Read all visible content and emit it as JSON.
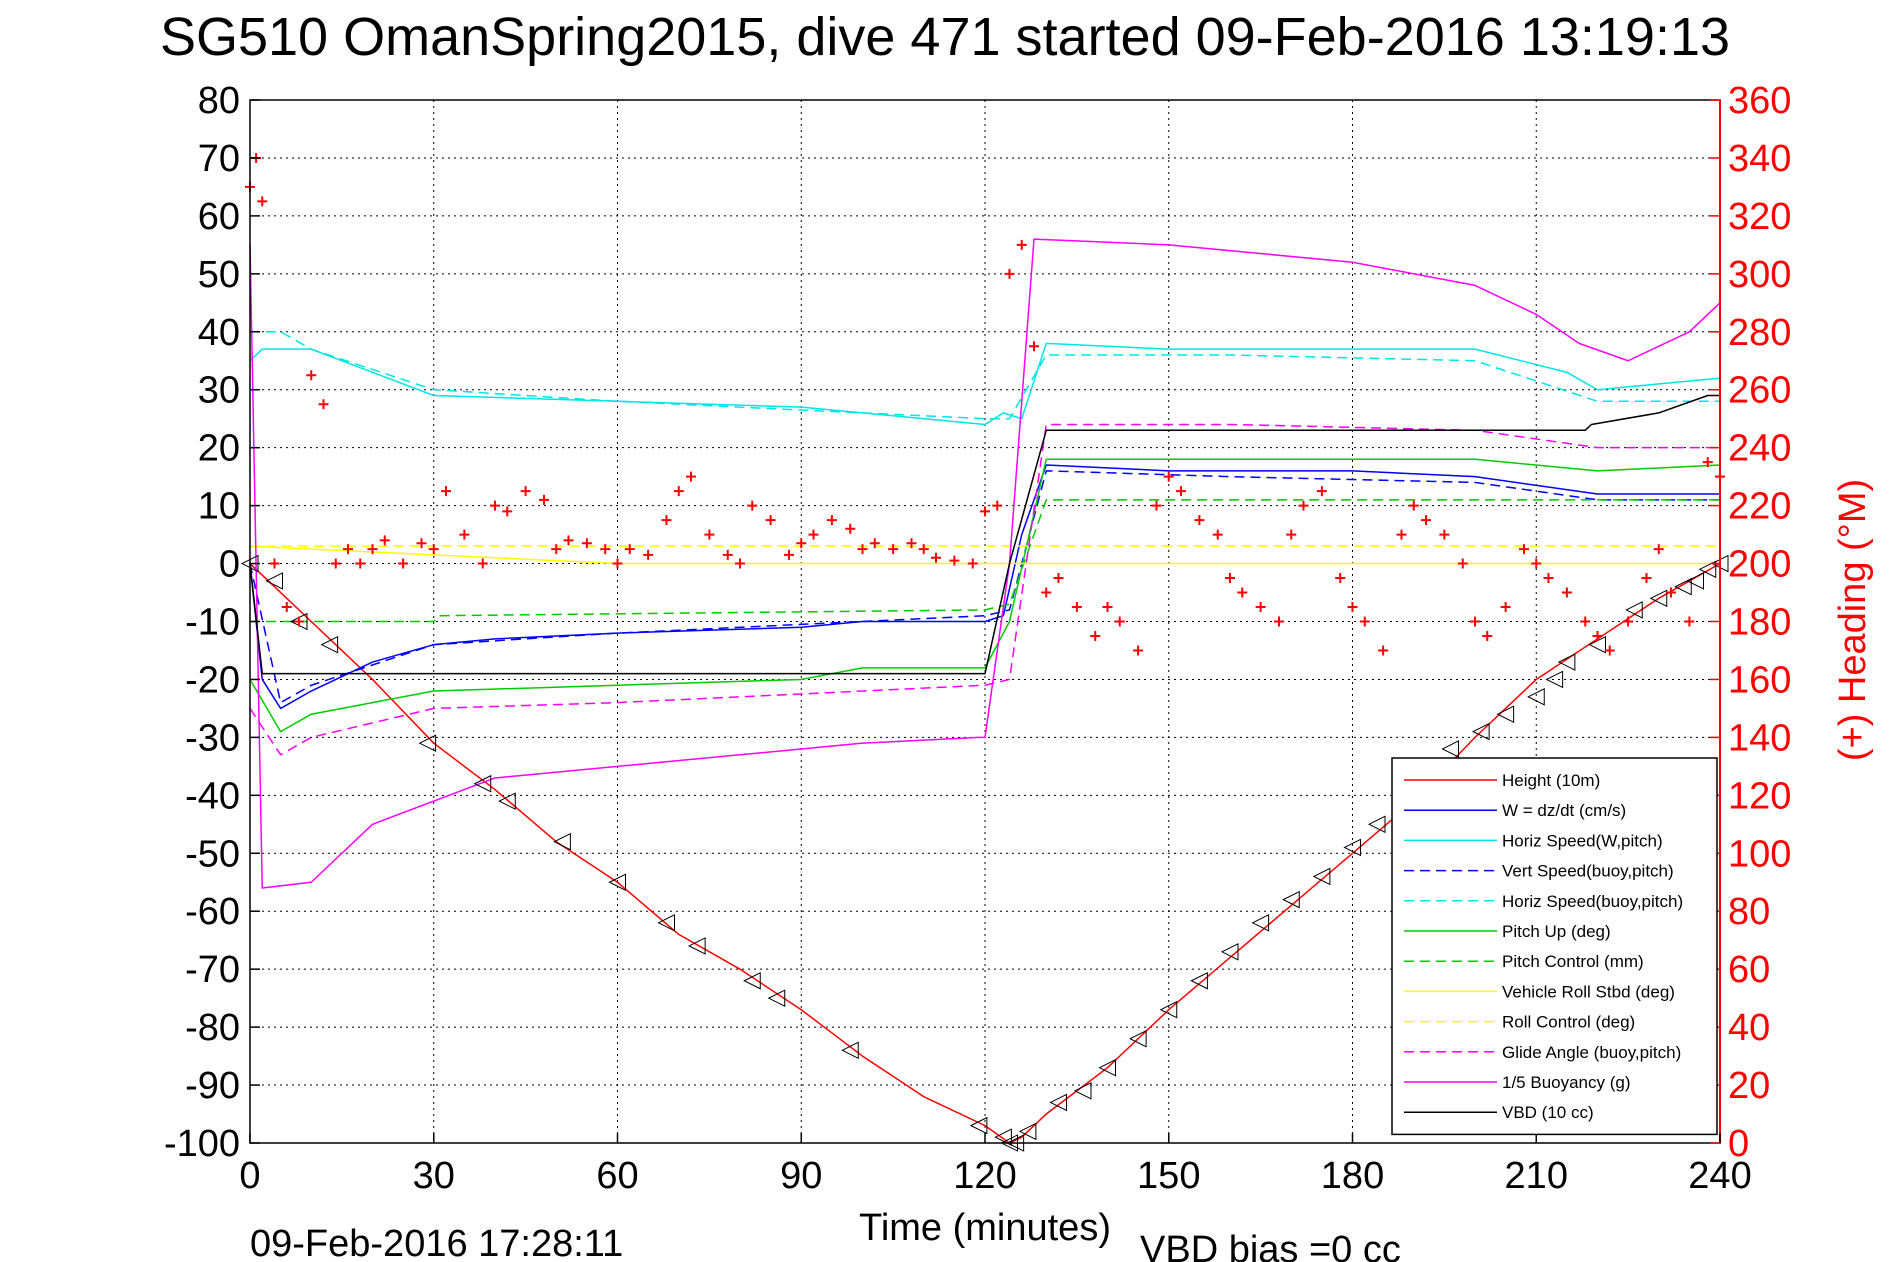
{
  "chart_data": {
    "type": "line",
    "title": "SG510 OmanSpring2015, dive 471 started 09-Feb-2016 13:19:13",
    "xlabel": "Time (minutes)",
    "ylabel": "",
    "y2label": "(+) Heading (°M)",
    "xlim": [
      0,
      240
    ],
    "ylim": [
      -100,
      80
    ],
    "y2lim": [
      0,
      360
    ],
    "xticks": [
      "0",
      "30",
      "60",
      "90",
      "120",
      "150",
      "180",
      "210",
      "240"
    ],
    "yticks": [
      "80",
      "70",
      "60",
      "50",
      "40",
      "30",
      "20",
      "10",
      "0",
      "-10",
      "-20",
      "-30",
      "-40",
      "-50",
      "-60",
      "-70",
      "-80",
      "-90",
      "-100"
    ],
    "y2ticks": [
      "360",
      "340",
      "320",
      "300",
      "280",
      "260",
      "240",
      "220",
      "200",
      "180",
      "160",
      "140",
      "120",
      "100",
      "80",
      "60",
      "40",
      "20",
      "0"
    ],
    "grid": true,
    "legend_position": "bottom-right",
    "footer_date": "09-Feb-2016 17:28:11",
    "footer_vbd": "VBD bias =0 cc",
    "series": [
      {
        "name": "Height (10m)",
        "color": "#ff0000",
        "style": "solid",
        "x": [
          0,
          5,
          10,
          20,
          30,
          40,
          50,
          60,
          70,
          80,
          90,
          100,
          110,
          120,
          124,
          126,
          130,
          140,
          150,
          160,
          170,
          180,
          190,
          200,
          210,
          220,
          230,
          240
        ],
        "y": [
          0,
          -5,
          -10,
          -20,
          -31,
          -39,
          -48,
          -55,
          -64,
          -70,
          -77,
          -85,
          -92,
          -97,
          -100,
          -99,
          -95,
          -87,
          -77,
          -68,
          -59,
          -50,
          -41,
          -30,
          -20,
          -13,
          -6,
          0
        ]
      },
      {
        "name": "W = dz/dt (cm/s)",
        "color": "#0000ff",
        "style": "solid",
        "x": [
          0,
          2,
          5,
          10,
          20,
          30,
          40,
          60,
          90,
          100,
          120,
          123,
          126,
          130,
          150,
          180,
          200,
          220,
          240
        ],
        "y": [
          0,
          -20,
          -25,
          -22,
          -17,
          -14,
          -13,
          -12,
          -11,
          -10,
          -10,
          -9,
          5,
          17,
          16,
          16,
          15,
          12,
          12
        ]
      },
      {
        "name": "Horiz Speed(W,pitch)",
        "color": "#00e5e5",
        "style": "solid",
        "x": [
          0,
          2,
          5,
          10,
          20,
          30,
          60,
          90,
          100,
          120,
          123,
          126,
          130,
          150,
          180,
          200,
          215,
          220,
          240
        ],
        "y": [
          35,
          37,
          37,
          37,
          33,
          29,
          28,
          27,
          26,
          24,
          26,
          25,
          38,
          37,
          37,
          37,
          33,
          30,
          32
        ]
      },
      {
        "name": "Vert Speed(buoy,pitch)",
        "color": "#0000ff",
        "style": "dashed",
        "x": [
          0,
          5,
          10,
          30,
          60,
          100,
          120,
          124,
          130,
          160,
          200,
          220,
          240
        ],
        "y": [
          0,
          -24,
          -21,
          -14,
          -12,
          -10,
          -9,
          -8,
          16,
          15,
          14,
          11,
          11
        ]
      },
      {
        "name": "Horiz Speed(buoy,pitch)",
        "color": "#00e5e5",
        "style": "dashed",
        "x": [
          0,
          5,
          10,
          30,
          60,
          100,
          120,
          124,
          130,
          160,
          200,
          220,
          240
        ],
        "y": [
          40,
          40,
          37,
          30,
          28,
          26,
          25,
          25,
          36,
          36,
          35,
          28,
          28
        ]
      },
      {
        "name": "Pitch Up (deg)",
        "color": "#00cc00",
        "style": "solid",
        "x": [
          0,
          5,
          10,
          20,
          30,
          60,
          90,
          100,
          120,
          124,
          130,
          160,
          200,
          220,
          240
        ],
        "y": [
          -20,
          -29,
          -26,
          -24,
          -22,
          -21,
          -20,
          -18,
          -18,
          -10,
          18,
          18,
          18,
          16,
          17
        ]
      },
      {
        "name": "Pitch Control (mm)",
        "color": "#00cc00",
        "style": "dashed",
        "x": [
          0,
          2,
          30,
          31,
          120,
          124,
          130,
          240
        ],
        "y": [
          -10,
          -10,
          -10,
          -9,
          -8,
          -7,
          11,
          11
        ]
      },
      {
        "name": "Vehicle Roll Stbd (deg)",
        "color": "#ffff00",
        "style": "solid",
        "x": [
          0,
          20,
          60,
          100,
          120,
          124,
          130,
          180,
          220,
          240
        ],
        "y": [
          3,
          2,
          0,
          0,
          0,
          0,
          0,
          0,
          0,
          0
        ]
      },
      {
        "name": "Roll Control (deg)",
        "color": "#ffff00",
        "style": "dashed",
        "x": [
          0,
          240
        ],
        "y": [
          3,
          3
        ]
      },
      {
        "name": "Glide Angle (buoy,pitch)",
        "color": "#ff00ff",
        "style": "dashed",
        "x": [
          0,
          5,
          10,
          30,
          60,
          100,
          120,
          124,
          130,
          160,
          200,
          220,
          240
        ],
        "y": [
          -25,
          -33,
          -30,
          -25,
          -24,
          -22,
          -21,
          -20,
          24,
          24,
          23,
          20,
          20
        ]
      },
      {
        "name": "1/5 Buoyancy (g)",
        "color": "#ff00ff",
        "style": "solid",
        "x": [
          0,
          2,
          10,
          20,
          40,
          60,
          80,
          100,
          119,
          120,
          124,
          128,
          150,
          180,
          200,
          210,
          217,
          225,
          235,
          240
        ],
        "y": [
          55,
          -56,
          -55,
          -45,
          -37,
          -35,
          -33,
          -31,
          -30,
          -30,
          0,
          56,
          55,
          52,
          48,
          43,
          38,
          35,
          40,
          45
        ]
      },
      {
        "name": "VBD (10 cc)",
        "color": "#000000",
        "style": "solid",
        "x": [
          0,
          2,
          20,
          119,
          120,
          124,
          130,
          218,
          219,
          230,
          238,
          240
        ],
        "y": [
          0,
          -19,
          -19,
          -19,
          -19,
          0,
          23,
          23,
          24,
          26,
          29,
          29
        ]
      }
    ],
    "heading_markers": {
      "name": "(+) Heading (°M)",
      "color": "#ff0000",
      "axis": "right",
      "x": [
        0,
        1,
        2,
        4,
        6,
        8,
        10,
        12,
        14,
        16,
        18,
        20,
        22,
        25,
        28,
        30,
        32,
        35,
        38,
        40,
        42,
        45,
        48,
        50,
        52,
        55,
        58,
        60,
        62,
        65,
        68,
        70,
        72,
        75,
        78,
        80,
        82,
        85,
        88,
        90,
        92,
        95,
        98,
        100,
        102,
        105,
        108,
        110,
        112,
        115,
        118,
        120,
        122,
        124,
        126,
        128,
        130,
        132,
        135,
        138,
        140,
        142,
        145,
        148,
        150,
        152,
        155,
        158,
        160,
        162,
        165,
        168,
        170,
        172,
        175,
        178,
        180,
        182,
        185,
        188,
        190,
        192,
        195,
        198,
        200,
        202,
        205,
        208,
        210,
        212,
        215,
        218,
        220,
        222,
        225,
        228,
        230,
        232,
        235,
        238,
        240
      ],
      "y": [
        330,
        340,
        325,
        200,
        185,
        180,
        265,
        255,
        200,
        205,
        200,
        205,
        208,
        200,
        207,
        205,
        225,
        210,
        200,
        220,
        218,
        225,
        222,
        205,
        208,
        207,
        205,
        200,
        205,
        203,
        215,
        225,
        230,
        210,
        203,
        200,
        220,
        215,
        203,
        207,
        210,
        215,
        212,
        205,
        207,
        205,
        207,
        205,
        202,
        201,
        200,
        218,
        220,
        300,
        310,
        275,
        190,
        195,
        185,
        175,
        185,
        180,
        170,
        220,
        230,
        225,
        215,
        210,
        195,
        190,
        185,
        180,
        210,
        220,
        225,
        195,
        185,
        180,
        170,
        210,
        220,
        215,
        210,
        200,
        180,
        175,
        185,
        205,
        200,
        195,
        190,
        180,
        175,
        170,
        180,
        195,
        205,
        190,
        180,
        235,
        230
      ]
    },
    "height_markers": {
      "x": [
        0,
        4,
        8,
        13,
        29,
        38,
        42,
        51,
        60,
        68,
        73,
        82,
        86,
        98,
        119,
        123,
        124,
        125,
        127,
        132,
        136,
        140,
        145,
        150,
        155,
        160,
        165,
        170,
        175,
        180,
        184,
        190,
        196,
        201,
        205,
        210,
        213,
        215,
        220,
        226,
        230,
        234,
        236,
        238,
        240
      ],
      "y": [
        0,
        -3,
        -10,
        -14,
        -31,
        -38,
        -41,
        -48,
        -55,
        -62,
        -66,
        -72,
        -75,
        -84,
        -97,
        -99,
        -100,
        -100,
        -98,
        -93,
        -91,
        -87,
        -82,
        -77,
        -72,
        -67,
        -62,
        -58,
        -54,
        -49,
        -45,
        -39,
        -32,
        -29,
        -26,
        -23,
        -20,
        -17,
        -14,
        -8,
        -6,
        -4,
        -3,
        -1,
        0
      ]
    }
  }
}
